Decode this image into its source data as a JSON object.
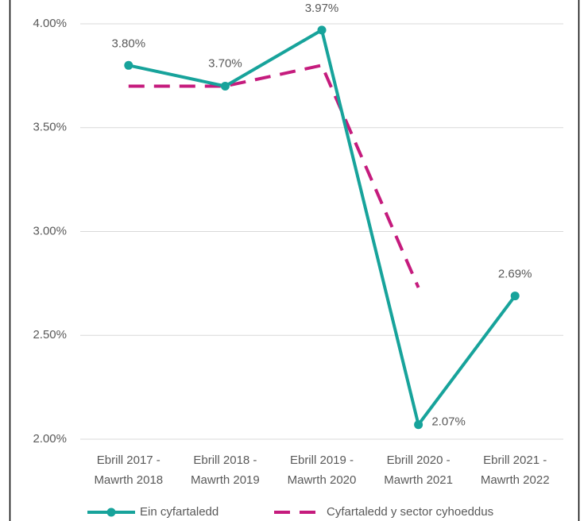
{
  "chart_data": {
    "type": "line",
    "categories": [
      [
        "Ebrill 2017 -",
        "Mawrth 2018"
      ],
      [
        "Ebrill 2018 -",
        "Mawrth 2019"
      ],
      [
        "Ebrill 2019 -",
        "Mawrth 2020"
      ],
      [
        "Ebrill 2020 -",
        "Mawrth 2021"
      ],
      [
        "Ebrill 2021 -",
        "Mawrth 2022"
      ]
    ],
    "series": [
      {
        "name": "Ein cyfartaledd",
        "color": "#17a39b",
        "style": "solid",
        "markers": true,
        "values": [
          3.8,
          3.7,
          3.97,
          2.07,
          2.69
        ],
        "value_labels": [
          "3.80%",
          "3.70%",
          "3.97%",
          "2.07%",
          "2.69%"
        ]
      },
      {
        "name": "Cyfartaledd y sector cyhoeddus",
        "color": "#c51b7d",
        "style": "dashed",
        "markers": false,
        "values": [
          3.7,
          3.7,
          3.8,
          2.73,
          null
        ]
      }
    ],
    "ylim": [
      2,
      4
    ],
    "yticks": [
      {
        "value": 2,
        "label": "2.00%"
      },
      {
        "value": 2.5,
        "label": "2.50%"
      },
      {
        "value": 3,
        "label": "3.00%"
      },
      {
        "value": 3.5,
        "label": "3.50%"
      },
      {
        "value": 4,
        "label": "4.00%"
      }
    ],
    "grid": true,
    "legend": "bottom"
  }
}
